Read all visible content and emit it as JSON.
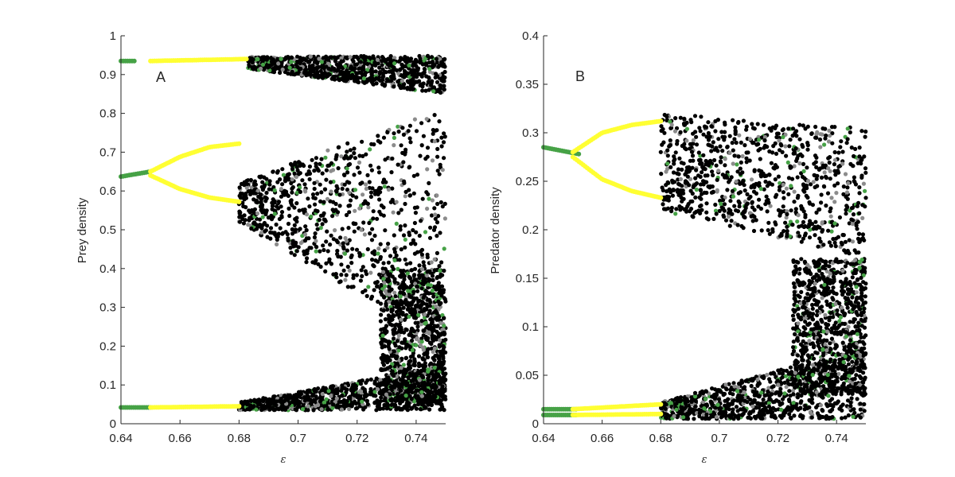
{
  "chart_data": [
    {
      "type": "scatter",
      "panel_label": "A",
      "xlabel": "ε",
      "ylabel": "Prey density",
      "xlim": [
        0.64,
        0.75
      ],
      "ylim": [
        0,
        1
      ],
      "x_ticks": [
        "0.64",
        "0.66",
        "0.68",
        "0.7",
        "0.72",
        "0.74"
      ],
      "y_ticks": [
        "0",
        "0.1",
        "0.2",
        "0.3",
        "0.4",
        "0.5",
        "0.6",
        "0.7",
        "0.8",
        "0.9",
        "1"
      ],
      "grid": false,
      "legend": "none",
      "series": [
        {
          "color": "#46a246",
          "branches": [
            {
              "x": [
                0.64,
                0.6445
              ],
              "y": [
                0.935,
                0.935
              ]
            },
            {
              "x": [
                0.64,
                0.65
              ],
              "y": [
                0.637,
                0.65
              ]
            },
            {
              "x": [
                0.64,
                0.65
              ],
              "y": [
                0.042,
                0.042
              ]
            }
          ]
        },
        {
          "color": "#ffff33",
          "branches": [
            {
              "x": [
                0.65,
                0.6825
              ],
              "y": [
                0.935,
                0.94
              ]
            },
            {
              "x": [
                0.65,
                0.66,
                0.67,
                0.68
              ],
              "y": [
                0.65,
                0.688,
                0.713,
                0.722
              ]
            },
            {
              "x": [
                0.65,
                0.66,
                0.67,
                0.68
              ],
              "y": [
                0.64,
                0.605,
                0.583,
                0.572
              ]
            },
            {
              "x": [
                0.65,
                0.68
              ],
              "y": [
                0.042,
                0.045
              ]
            }
          ]
        },
        {
          "color": "#000000",
          "band": "chaotic",
          "regions": [
            {
              "x": [
                0.68,
                0.75
              ],
              "y_low": [
                0.52,
                0.2
              ],
              "y_high": [
                0.62,
                0.82
              ]
            },
            {
              "x": [
                0.728,
                0.75
              ],
              "y_low": [
                0.06,
                0.04
              ],
              "y_high": [
                0.4,
                0.4
              ]
            },
            {
              "x": [
                0.68,
                0.75
              ],
              "y_low": [
                0.035,
                0.035
              ],
              "y_high": [
                0.055,
                0.15
              ]
            },
            {
              "x": [
                0.683,
                0.75
              ],
              "y_low": [
                0.915,
                0.85
              ],
              "y_high": [
                0.945,
                0.95
              ]
            }
          ]
        }
      ]
    },
    {
      "type": "scatter",
      "panel_label": "B",
      "xlabel": "ε",
      "ylabel": "Predator density",
      "xlim": [
        0.64,
        0.75
      ],
      "ylim": [
        0,
        0.4
      ],
      "x_ticks": [
        "0.64",
        "0.66",
        "0.68",
        "0.7",
        "0.72",
        "0.74"
      ],
      "y_ticks": [
        "0",
        "0.05",
        "0.1",
        "0.15",
        "0.2",
        "0.25",
        "0.3",
        "0.35",
        "0.4"
      ],
      "grid": false,
      "legend": "none",
      "series": [
        {
          "color": "#46a246",
          "branches": [
            {
              "x": [
                0.64,
                0.652
              ],
              "y": [
                0.285,
                0.278
              ]
            },
            {
              "x": [
                0.64,
                0.651
              ],
              "y": [
                0.015,
                0.015
              ]
            },
            {
              "x": [
                0.64,
                0.651
              ],
              "y": [
                0.009,
                0.009
              ]
            }
          ]
        },
        {
          "color": "#ffff33",
          "branches": [
            {
              "x": [
                0.65,
                0.66,
                0.67,
                0.68
              ],
              "y": [
                0.28,
                0.3,
                0.308,
                0.312
              ]
            },
            {
              "x": [
                0.65,
                0.66,
                0.67,
                0.68
              ],
              "y": [
                0.275,
                0.252,
                0.24,
                0.233
              ]
            },
            {
              "x": [
                0.65,
                0.68
              ],
              "y": [
                0.015,
                0.02
              ]
            },
            {
              "x": [
                0.65,
                0.68
              ],
              "y": [
                0.009,
                0.01
              ]
            }
          ]
        },
        {
          "color": "#000000",
          "band": "chaotic",
          "regions": [
            {
              "x": [
                0.68,
                0.75
              ],
              "y_low": [
                0.22,
                0.17
              ],
              "y_high": [
                0.32,
                0.305
              ]
            },
            {
              "x": [
                0.725,
                0.75
              ],
              "y_low": [
                0.03,
                0.03
              ],
              "y_high": [
                0.17,
                0.17
              ]
            },
            {
              "x": [
                0.68,
                0.75
              ],
              "y_low": [
                0.005,
                0.005
              ],
              "y_high": [
                0.022,
                0.08
              ]
            }
          ]
        }
      ]
    }
  ]
}
